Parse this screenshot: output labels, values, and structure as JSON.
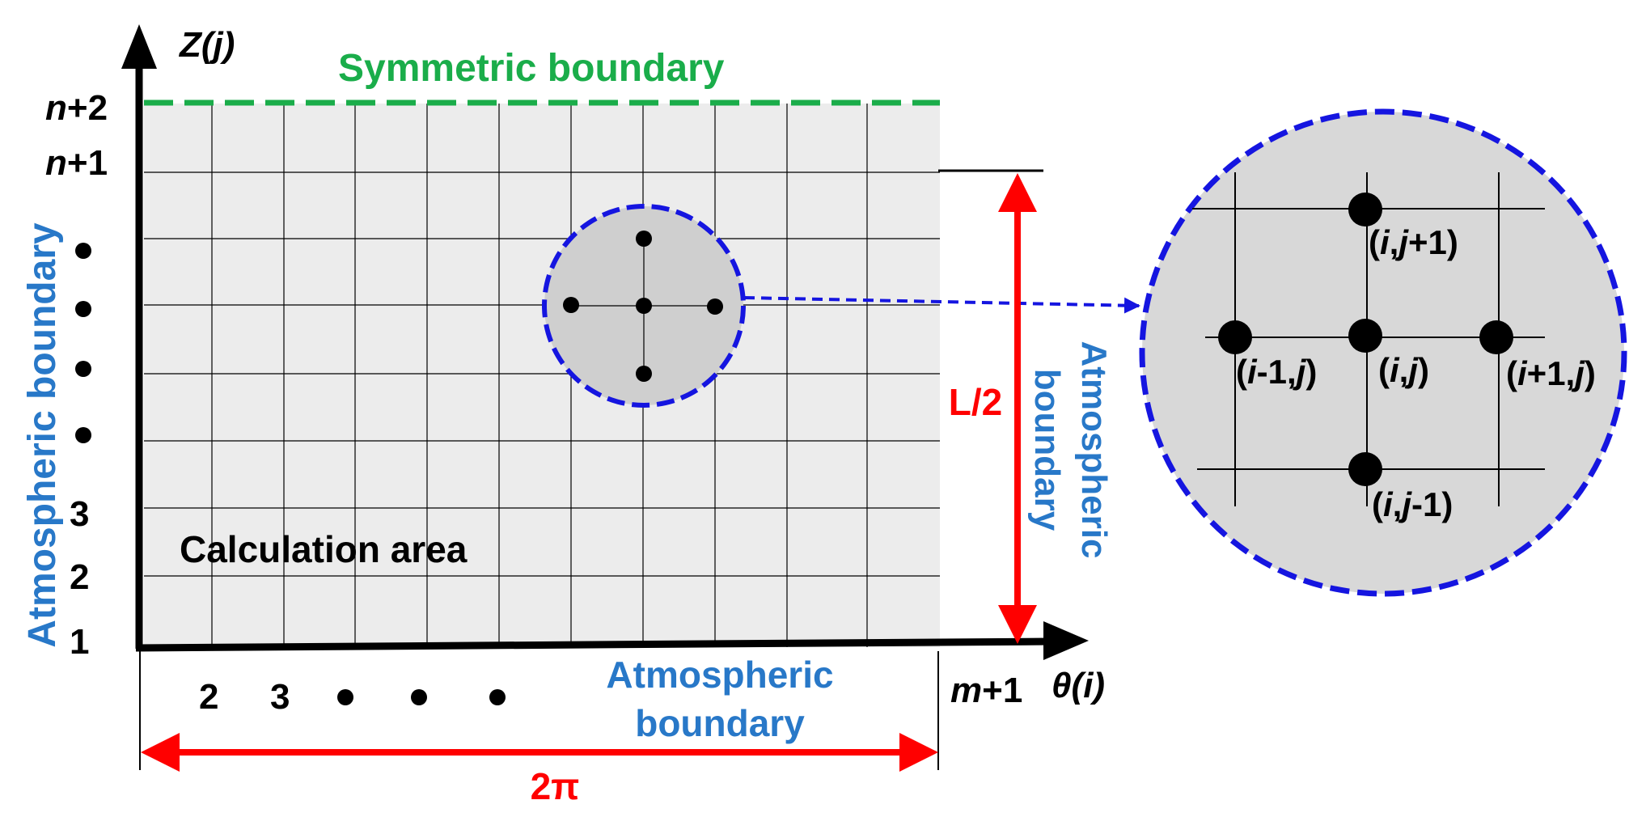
{
  "axes": {
    "z_label": "Z(j)",
    "theta_label": "θ(i)"
  },
  "boundaries": {
    "top": "Symmetric boundary",
    "left": "Atmospheric boundary",
    "bottom_line1": "Atmospheric",
    "bottom_line2": "boundary",
    "right_line1": "Atmospheric",
    "right_line2": "boundary"
  },
  "region_label": "Calculation area",
  "y_ticks": {
    "n2": {
      "var": "n",
      "suffix": "+2"
    },
    "n1": {
      "var": "n",
      "suffix": "+1"
    },
    "t3": "3",
    "t2": "2",
    "t1": "1"
  },
  "x_ticks": {
    "t2": "2",
    "t3": "3",
    "m1": {
      "var": "m",
      "suffix": "+1"
    }
  },
  "dimensions": {
    "width": "2π",
    "height": "L/2"
  },
  "nodes": {
    "top": {
      "p1": "(",
      "v1": "i",
      "p2": ",",
      "v2": "j",
      "p3": "+1)"
    },
    "left": {
      "p1": "(",
      "v1": "i",
      "p2": "-1,",
      "v2": "j",
      "p3": ")"
    },
    "center": {
      "p1": "(",
      "v1": "i",
      "p2": ",",
      "v2": "j",
      "p3": ")"
    },
    "right": {
      "p1": "(",
      "v1": "i",
      "p2": "+1,",
      "v2": "j",
      "p3": ")"
    },
    "bottom": {
      "p1": "(",
      "v1": "i",
      "p2": ",",
      "v2": "j",
      "p3": "-1)"
    }
  },
  "colors": {
    "grid_fill": "#ececec",
    "zoom_fill": "#cfcfcf",
    "symmetric": "#1aad4a",
    "atmospheric": "#2878c8",
    "dimension": "#ff0000",
    "dash_circle": "#1515e0",
    "axis": "#000000"
  }
}
